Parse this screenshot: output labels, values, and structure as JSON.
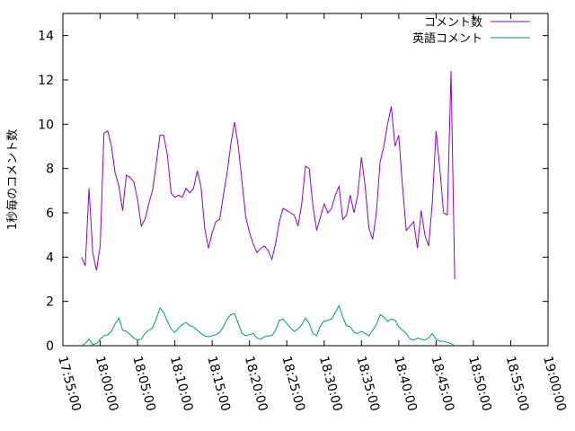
{
  "chart_data": {
    "type": "line",
    "title": "",
    "xlabel": "",
    "ylabel": "1秒毎のコメント数",
    "x_ticks": [
      "17:55:00",
      "18:00:00",
      "18:05:00",
      "18:10:00",
      "18:15:00",
      "18:20:00",
      "18:25:00",
      "18:30:00",
      "18:35:00",
      "18:40:00",
      "18:45:00",
      "18:50:00",
      "18:55:00",
      "19:00:00"
    ],
    "xlim": [
      "17:55:00",
      "19:00:00"
    ],
    "y_ticks": [
      0,
      2,
      4,
      6,
      8,
      10,
      12,
      14
    ],
    "ylim": [
      0,
      15
    ],
    "grid": false,
    "legend_position": "top-right",
    "series": [
      {
        "name": "コメント数",
        "color": "#9400d3",
        "points": [
          [
            "17:57:30",
            4.0
          ],
          [
            "17:58:00",
            3.6
          ],
          [
            "17:58:30",
            7.1
          ],
          [
            "17:59:00",
            4.2
          ],
          [
            "17:59:30",
            3.4
          ],
          [
            "18:00:00",
            4.5
          ],
          [
            "18:00:30",
            9.6
          ],
          [
            "18:01:00",
            9.7
          ],
          [
            "18:01:30",
            9.0
          ],
          [
            "18:02:00",
            7.8
          ],
          [
            "18:02:30",
            7.2
          ],
          [
            "18:03:00",
            6.1
          ],
          [
            "18:03:30",
            7.7
          ],
          [
            "18:04:00",
            7.6
          ],
          [
            "18:04:30",
            7.4
          ],
          [
            "18:05:00",
            6.6
          ],
          [
            "18:05:30",
            5.4
          ],
          [
            "18:06:00",
            5.7
          ],
          [
            "18:06:30",
            6.4
          ],
          [
            "18:07:00",
            7.0
          ],
          [
            "18:07:30",
            8.2
          ],
          [
            "18:08:00",
            9.5
          ],
          [
            "18:08:30",
            9.5
          ],
          [
            "18:09:00",
            8.6
          ],
          [
            "18:09:30",
            6.9
          ],
          [
            "18:10:00",
            6.7
          ],
          [
            "18:10:30",
            6.8
          ],
          [
            "18:11:00",
            6.7
          ],
          [
            "18:11:30",
            7.1
          ],
          [
            "18:12:00",
            6.9
          ],
          [
            "18:12:30",
            7.1
          ],
          [
            "18:13:00",
            7.9
          ],
          [
            "18:13:30",
            7.2
          ],
          [
            "18:14:00",
            5.3
          ],
          [
            "18:14:30",
            4.4
          ],
          [
            "18:15:00",
            5.1
          ],
          [
            "18:15:30",
            5.6
          ],
          [
            "18:16:00",
            5.7
          ],
          [
            "18:16:30",
            6.8
          ],
          [
            "18:17:00",
            7.8
          ],
          [
            "18:17:30",
            9.1
          ],
          [
            "18:18:00",
            10.1
          ],
          [
            "18:18:30",
            9.0
          ],
          [
            "18:19:00",
            7.4
          ],
          [
            "18:19:30",
            5.8
          ],
          [
            "18:20:00",
            5.1
          ],
          [
            "18:20:30",
            4.6
          ],
          [
            "18:21:00",
            4.2
          ],
          [
            "18:21:30",
            4.4
          ],
          [
            "18:22:00",
            4.5
          ],
          [
            "18:22:30",
            4.3
          ],
          [
            "18:23:00",
            3.9
          ],
          [
            "18:23:30",
            4.6
          ],
          [
            "18:24:00",
            5.6
          ],
          [
            "18:24:30",
            6.2
          ],
          [
            "18:25:00",
            6.1
          ],
          [
            "18:25:30",
            6.0
          ],
          [
            "18:26:00",
            5.9
          ],
          [
            "18:26:30",
            5.4
          ],
          [
            "18:27:00",
            6.4
          ],
          [
            "18:27:30",
            8.1
          ],
          [
            "18:28:00",
            8.0
          ],
          [
            "18:28:30",
            6.3
          ],
          [
            "18:29:00",
            5.2
          ],
          [
            "18:29:30",
            5.8
          ],
          [
            "18:30:00",
            6.4
          ],
          [
            "18:30:30",
            6.0
          ],
          [
            "18:31:00",
            6.2
          ],
          [
            "18:31:30",
            6.8
          ],
          [
            "18:32:00",
            7.2
          ],
          [
            "18:32:30",
            5.7
          ],
          [
            "18:33:00",
            5.9
          ],
          [
            "18:33:30",
            6.8
          ],
          [
            "18:34:00",
            6.0
          ],
          [
            "18:34:30",
            6.8
          ],
          [
            "18:35:00",
            8.5
          ],
          [
            "18:35:30",
            7.2
          ],
          [
            "18:36:00",
            5.3
          ],
          [
            "18:36:30",
            4.8
          ],
          [
            "18:37:00",
            6.0
          ],
          [
            "18:37:30",
            8.3
          ],
          [
            "18:38:00",
            9.0
          ],
          [
            "18:38:30",
            10.0
          ],
          [
            "18:39:00",
            10.8
          ],
          [
            "18:39:30",
            9.0
          ],
          [
            "18:40:00",
            9.5
          ],
          [
            "18:40:30",
            7.2
          ],
          [
            "18:41:00",
            5.2
          ],
          [
            "18:41:30",
            5.4
          ],
          [
            "18:42:00",
            5.6
          ],
          [
            "18:42:30",
            4.4
          ],
          [
            "18:43:00",
            6.1
          ],
          [
            "18:43:30",
            5.0
          ],
          [
            "18:44:00",
            4.5
          ],
          [
            "18:44:30",
            6.5
          ],
          [
            "18:45:00",
            9.7
          ],
          [
            "18:45:30",
            8.0
          ],
          [
            "18:46:00",
            6.0
          ],
          [
            "18:46:30",
            5.9
          ],
          [
            "18:47:00",
            12.4
          ],
          [
            "18:47:30",
            3.0
          ]
        ]
      },
      {
        "name": "英語コメント",
        "color": "#009e73",
        "points": [
          [
            "17:57:30",
            0.0
          ],
          [
            "17:58:00",
            0.1
          ],
          [
            "17:58:30",
            0.3
          ],
          [
            "17:59:00",
            0.05
          ],
          [
            "17:59:30",
            0.1
          ],
          [
            "18:00:00",
            0.3
          ],
          [
            "18:00:30",
            0.45
          ],
          [
            "18:01:00",
            0.5
          ],
          [
            "18:01:30",
            0.65
          ],
          [
            "18:02:00",
            1.0
          ],
          [
            "18:02:30",
            1.25
          ],
          [
            "18:03:00",
            0.7
          ],
          [
            "18:03:30",
            0.65
          ],
          [
            "18:04:00",
            0.5
          ],
          [
            "18:04:30",
            0.35
          ],
          [
            "18:05:00",
            0.25
          ],
          [
            "18:05:30",
            0.3
          ],
          [
            "18:06:00",
            0.55
          ],
          [
            "18:06:30",
            0.7
          ],
          [
            "18:07:00",
            0.8
          ],
          [
            "18:07:30",
            1.2
          ],
          [
            "18:08:00",
            1.7
          ],
          [
            "18:08:30",
            1.5
          ],
          [
            "18:09:00",
            1.1
          ],
          [
            "18:09:30",
            0.75
          ],
          [
            "18:10:00",
            0.6
          ],
          [
            "18:10:30",
            0.8
          ],
          [
            "18:11:00",
            0.95
          ],
          [
            "18:11:30",
            1.05
          ],
          [
            "18:12:00",
            0.9
          ],
          [
            "18:12:30",
            0.85
          ],
          [
            "18:13:00",
            0.7
          ],
          [
            "18:13:30",
            0.55
          ],
          [
            "18:14:00",
            0.45
          ],
          [
            "18:14:30",
            0.4
          ],
          [
            "18:15:00",
            0.45
          ],
          [
            "18:15:30",
            0.5
          ],
          [
            "18:16:00",
            0.6
          ],
          [
            "18:16:30",
            0.85
          ],
          [
            "18:17:00",
            1.2
          ],
          [
            "18:17:30",
            1.4
          ],
          [
            "18:18:00",
            1.45
          ],
          [
            "18:18:30",
            1.0
          ],
          [
            "18:19:00",
            0.55
          ],
          [
            "18:19:30",
            0.45
          ],
          [
            "18:20:00",
            0.5
          ],
          [
            "18:20:30",
            0.55
          ],
          [
            "18:21:00",
            0.35
          ],
          [
            "18:21:30",
            0.3
          ],
          [
            "18:22:00",
            0.4
          ],
          [
            "18:22:30",
            0.45
          ],
          [
            "18:23:00",
            0.45
          ],
          [
            "18:23:30",
            0.7
          ],
          [
            "18:24:00",
            1.15
          ],
          [
            "18:24:30",
            1.2
          ],
          [
            "18:25:00",
            1.0
          ],
          [
            "18:25:30",
            0.8
          ],
          [
            "18:26:00",
            0.65
          ],
          [
            "18:26:30",
            0.75
          ],
          [
            "18:27:00",
            0.95
          ],
          [
            "18:27:30",
            1.25
          ],
          [
            "18:28:00",
            1.0
          ],
          [
            "18:28:30",
            0.55
          ],
          [
            "18:29:00",
            0.45
          ],
          [
            "18:29:30",
            0.9
          ],
          [
            "18:30:00",
            1.1
          ],
          [
            "18:30:30",
            1.15
          ],
          [
            "18:31:00",
            1.2
          ],
          [
            "18:31:30",
            1.5
          ],
          [
            "18:32:00",
            1.8
          ],
          [
            "18:32:30",
            1.3
          ],
          [
            "18:33:00",
            0.9
          ],
          [
            "18:33:30",
            0.85
          ],
          [
            "18:34:00",
            0.6
          ],
          [
            "18:34:30",
            0.55
          ],
          [
            "18:35:00",
            0.65
          ],
          [
            "18:35:30",
            0.55
          ],
          [
            "18:36:00",
            0.45
          ],
          [
            "18:36:30",
            0.7
          ],
          [
            "18:37:00",
            0.95
          ],
          [
            "18:37:30",
            1.4
          ],
          [
            "18:38:00",
            1.3
          ],
          [
            "18:38:30",
            1.1
          ],
          [
            "18:39:00",
            1.2
          ],
          [
            "18:39:30",
            1.15
          ],
          [
            "18:40:00",
            0.85
          ],
          [
            "18:40:30",
            0.7
          ],
          [
            "18:41:00",
            0.55
          ],
          [
            "18:41:30",
            0.3
          ],
          [
            "18:42:00",
            0.25
          ],
          [
            "18:42:30",
            0.35
          ],
          [
            "18:43:00",
            0.3
          ],
          [
            "18:43:30",
            0.25
          ],
          [
            "18:44:00",
            0.35
          ],
          [
            "18:44:30",
            0.55
          ],
          [
            "18:45:00",
            0.3
          ],
          [
            "18:45:30",
            0.2
          ],
          [
            "18:46:00",
            0.2
          ],
          [
            "18:46:30",
            0.15
          ],
          [
            "18:47:00",
            0.1
          ],
          [
            "18:47:30",
            0.0
          ]
        ]
      }
    ]
  }
}
